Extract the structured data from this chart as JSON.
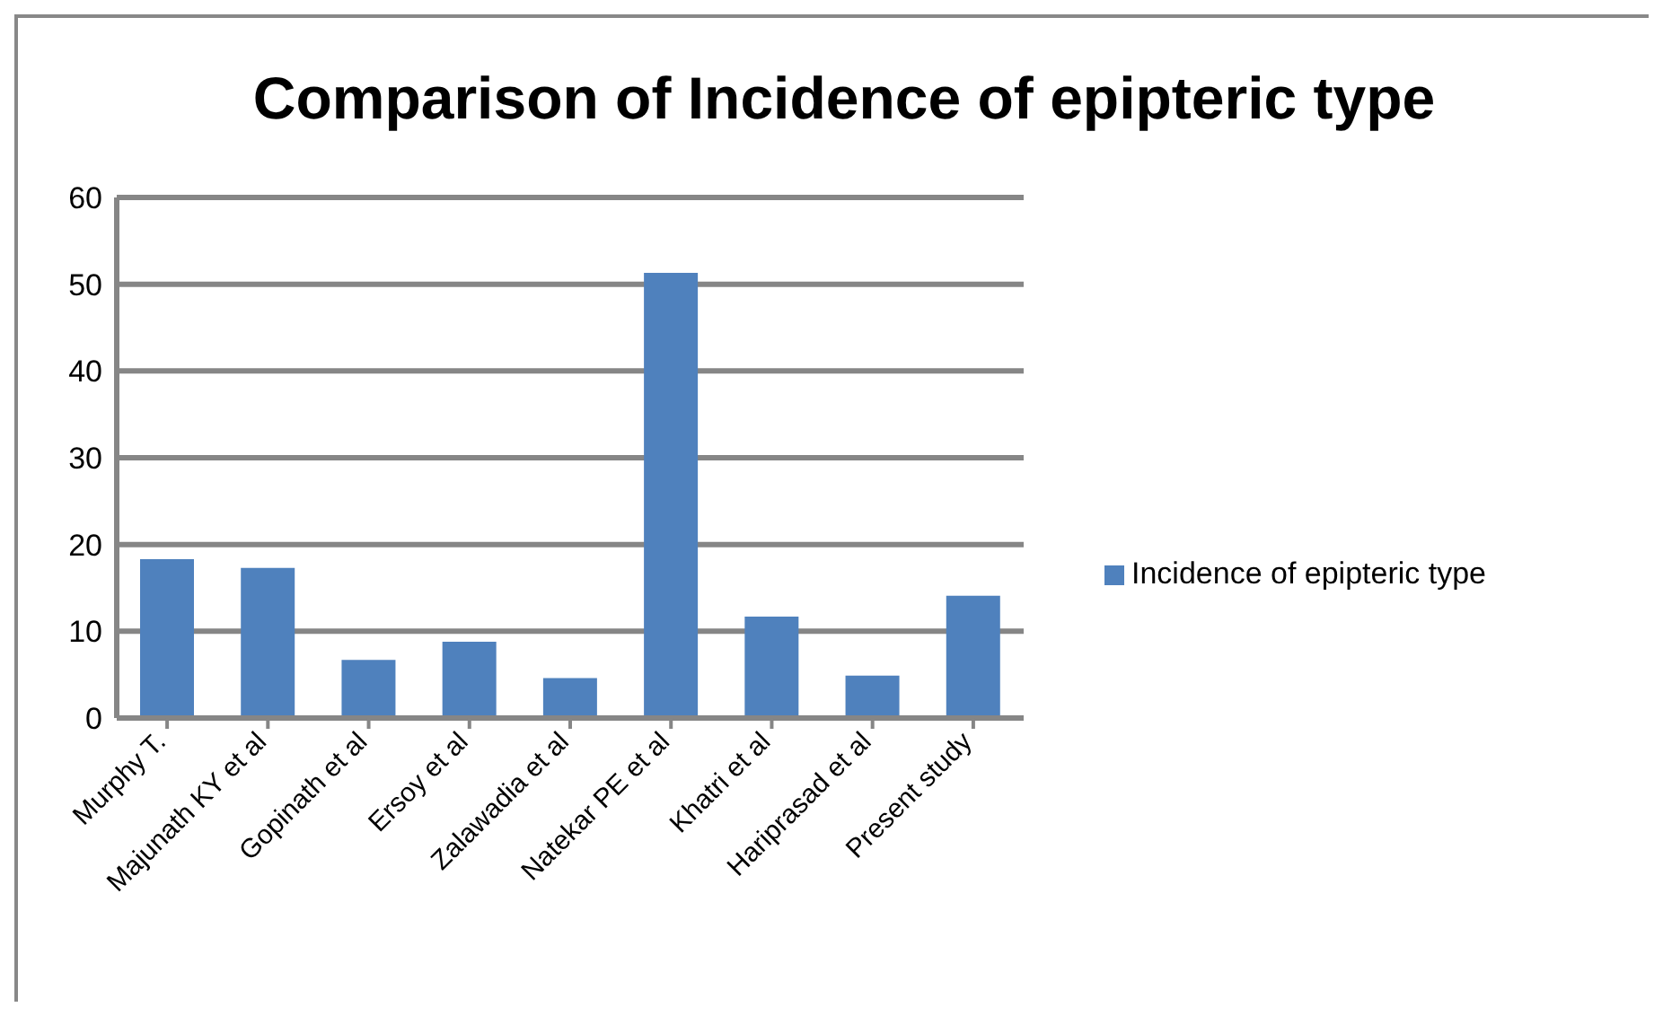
{
  "chart_data": {
    "type": "bar",
    "title": "Comparison of Incidence of epipteric type",
    "categories": [
      "Murphy T.",
      "Majunath KY et al",
      "Gopinath et al",
      "Ersoy et al",
      "Zalawadia et al",
      "Natekar PE et al",
      "Khatri et al",
      "Hariprasad et al",
      "Present study"
    ],
    "series": [
      {
        "name": "Incidence of epipteric type",
        "color": "#4f81bd",
        "values": [
          18.3,
          17.3,
          6.7,
          8.8,
          4.6,
          51.3,
          11.7,
          4.9,
          14.1
        ]
      }
    ],
    "ylim": [
      0,
      60
    ],
    "yticks": [
      0,
      10,
      20,
      30,
      40,
      50,
      60
    ],
    "grid": "y",
    "legend": "right"
  }
}
